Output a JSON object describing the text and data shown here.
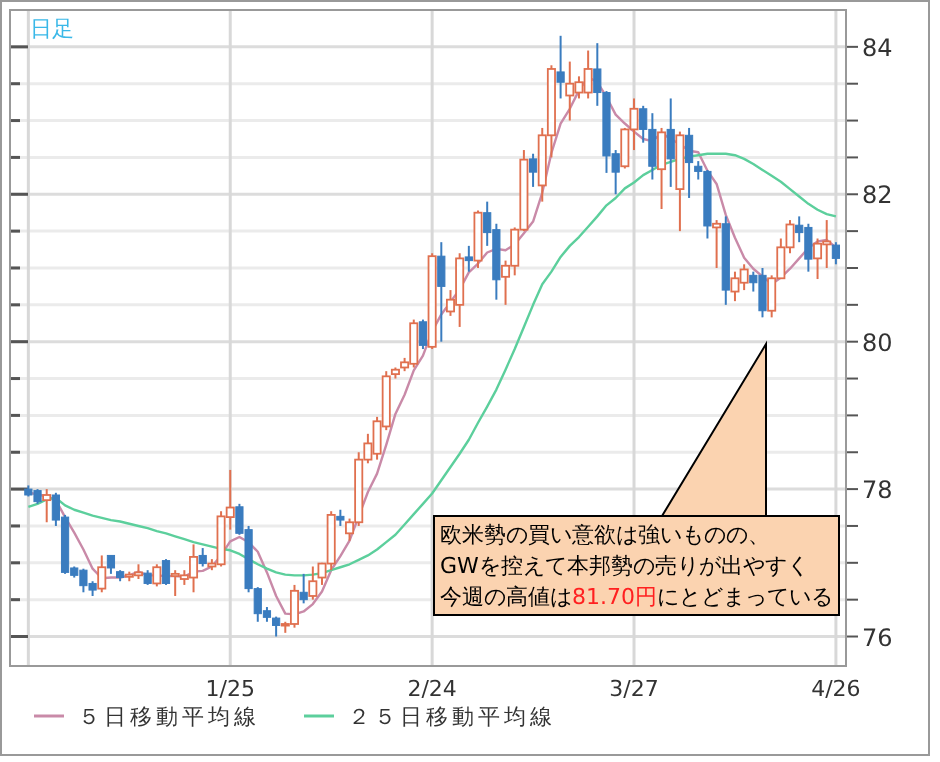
{
  "chart_data": {
    "type": "candlestick",
    "title": "日足",
    "categories": [
      null,
      null,
      null,
      null,
      null,
      null,
      null,
      null,
      null,
      null,
      null,
      null,
      null,
      null,
      null,
      null,
      null,
      null,
      null,
      null,
      null,
      null,
      "1/25",
      null,
      null,
      null,
      null,
      null,
      null,
      null,
      null,
      null,
      null,
      null,
      null,
      null,
      null,
      null,
      null,
      null,
      null,
      null,
      null,
      null,
      "2/24",
      null,
      null,
      null,
      null,
      null,
      null,
      null,
      null,
      null,
      null,
      null,
      null,
      null,
      null,
      null,
      null,
      null,
      null,
      null,
      null,
      null,
      "3/27",
      null,
      null,
      null,
      null,
      null,
      null,
      null,
      null,
      null,
      null,
      null,
      null,
      null,
      null,
      null,
      null,
      null,
      null,
      null,
      null,
      null,
      "4/26"
    ],
    "ohlc": [
      [
        78.0,
        78.05,
        77.9,
        77.92
      ],
      [
        77.98,
        78.0,
        77.8,
        77.83
      ],
      [
        77.85,
        78.0,
        77.55,
        77.92
      ],
      [
        77.92,
        77.95,
        77.5,
        77.58
      ],
      [
        77.62,
        77.65,
        76.85,
        76.87
      ],
      [
        76.93,
        76.95,
        76.8,
        76.83
      ],
      [
        76.9,
        76.92,
        76.6,
        76.69
      ],
      [
        76.72,
        76.75,
        76.55,
        76.63
      ],
      [
        76.65,
        77.1,
        76.6,
        76.94
      ],
      [
        77.1,
        77.1,
        76.85,
        76.93
      ],
      [
        76.88,
        76.9,
        76.75,
        76.8
      ],
      [
        76.81,
        76.88,
        76.75,
        76.84
      ],
      [
        76.83,
        76.98,
        76.78,
        76.87
      ],
      [
        76.86,
        76.9,
        76.7,
        76.72
      ],
      [
        76.72,
        76.98,
        76.68,
        76.94
      ],
      [
        77.03,
        77.05,
        76.7,
        76.72
      ],
      [
        76.82,
        76.9,
        76.55,
        76.85
      ],
      [
        76.78,
        76.9,
        76.7,
        76.83
      ],
      [
        76.8,
        77.25,
        76.6,
        77.08
      ],
      [
        77.1,
        77.2,
        76.95,
        76.99
      ],
      [
        76.95,
        77.05,
        76.9,
        76.99
      ],
      [
        76.98,
        77.7,
        76.95,
        77.63
      ],
      [
        77.62,
        78.26,
        77.45,
        77.75
      ],
      [
        77.76,
        77.8,
        77.38,
        77.4
      ],
      [
        77.45,
        77.5,
        76.6,
        76.65
      ],
      [
        76.65,
        76.67,
        76.2,
        76.31
      ],
      [
        76.35,
        76.4,
        76.2,
        76.26
      ],
      [
        76.25,
        76.27,
        76.0,
        76.15
      ],
      [
        76.15,
        76.2,
        76.05,
        76.17
      ],
      [
        76.17,
        76.7,
        76.12,
        76.62
      ],
      [
        76.6,
        76.85,
        76.45,
        76.5
      ],
      [
        76.55,
        76.95,
        76.5,
        76.75
      ],
      [
        76.8,
        77.0,
        76.7,
        76.99
      ],
      [
        76.99,
        77.7,
        76.9,
        77.65
      ],
      [
        77.63,
        77.72,
        77.5,
        77.58
      ],
      [
        77.4,
        77.6,
        77.3,
        77.55
      ],
      [
        77.55,
        78.5,
        77.5,
        78.4
      ],
      [
        78.4,
        78.75,
        78.35,
        78.62
      ],
      [
        78.48,
        78.98,
        78.4,
        78.92
      ],
      [
        78.85,
        79.6,
        78.8,
        79.53
      ],
      [
        79.56,
        79.65,
        79.5,
        79.62
      ],
      [
        79.65,
        79.78,
        79.6,
        79.72
      ],
      [
        79.7,
        80.3,
        79.65,
        80.25
      ],
      [
        80.27,
        80.3,
        79.9,
        79.95
      ],
      [
        79.93,
        81.2,
        79.9,
        81.16
      ],
      [
        81.16,
        81.35,
        80.0,
        80.75
      ],
      [
        80.41,
        80.7,
        80.35,
        80.57
      ],
      [
        80.5,
        81.2,
        80.2,
        81.13
      ],
      [
        81.15,
        81.3,
        80.95,
        81.1
      ],
      [
        81.1,
        81.78,
        81.0,
        81.75
      ],
      [
        81.75,
        81.9,
        81.3,
        81.48
      ],
      [
        81.52,
        81.6,
        80.57,
        80.84
      ],
      [
        80.88,
        81.1,
        80.5,
        81.03
      ],
      [
        81.03,
        81.55,
        80.9,
        81.52
      ],
      [
        81.52,
        82.6,
        81.5,
        82.47
      ],
      [
        82.48,
        82.55,
        82.1,
        82.3
      ],
      [
        82.12,
        82.9,
        81.9,
        82.8
      ],
      [
        82.8,
        83.75,
        82.5,
        83.7
      ],
      [
        83.66,
        84.15,
        83.3,
        83.52
      ],
      [
        83.34,
        83.8,
        83.0,
        83.5
      ],
      [
        83.38,
        83.6,
        83.3,
        83.52
      ],
      [
        83.38,
        83.95,
        83.3,
        83.7
      ],
      [
        83.7,
        84.05,
        83.2,
        83.38
      ],
      [
        83.38,
        83.4,
        82.29,
        82.52
      ],
      [
        82.55,
        82.6,
        82.0,
        82.3
      ],
      [
        82.38,
        82.9,
        82.35,
        82.88
      ],
      [
        82.88,
        83.3,
        82.6,
        83.16
      ],
      [
        83.16,
        83.2,
        82.7,
        82.88
      ],
      [
        82.88,
        83.1,
        82.2,
        82.38
      ],
      [
        82.34,
        82.9,
        81.8,
        82.84
      ],
      [
        82.88,
        83.3,
        82.1,
        82.48
      ],
      [
        82.07,
        82.85,
        81.5,
        82.8
      ],
      [
        82.8,
        82.9,
        81.95,
        82.43
      ],
      [
        82.38,
        82.45,
        82.2,
        82.31
      ],
      [
        82.31,
        82.33,
        81.4,
        81.57
      ],
      [
        81.55,
        81.65,
        81.0,
        81.6
      ],
      [
        81.6,
        81.7,
        80.5,
        80.7
      ],
      [
        80.68,
        80.95,
        80.55,
        80.86
      ],
      [
        80.8,
        81.05,
        80.7,
        80.98
      ],
      [
        80.9,
        80.95,
        80.68,
        80.8
      ],
      [
        80.9,
        81.0,
        80.33,
        80.42
      ],
      [
        80.42,
        80.9,
        80.33,
        80.86
      ],
      [
        80.86,
        81.4,
        80.85,
        81.28
      ],
      [
        81.28,
        81.65,
        81.2,
        81.59
      ],
      [
        81.58,
        81.7,
        81.35,
        81.48
      ],
      [
        81.55,
        81.6,
        80.95,
        81.12
      ],
      [
        81.13,
        81.4,
        80.85,
        81.33
      ],
      [
        81.32,
        81.65,
        81.0,
        81.36
      ],
      [
        81.31,
        81.35,
        81.05,
        81.13
      ]
    ],
    "series": [
      {
        "name": "５日移動平均線",
        "type": "line",
        "color": "#c98aa8",
        "values": [
          77.95,
          77.93,
          77.9,
          77.85,
          77.62,
          77.41,
          77.18,
          76.92,
          76.79,
          76.8,
          76.8,
          76.83,
          76.88,
          76.83,
          76.83,
          76.82,
          76.82,
          76.81,
          76.88,
          76.89,
          76.95,
          77.1,
          77.29,
          77.35,
          77.28,
          77.15,
          76.87,
          76.55,
          76.31,
          76.3,
          76.34,
          76.44,
          76.61,
          76.9,
          77.09,
          77.3,
          77.63,
          77.96,
          78.21,
          78.6,
          79.02,
          79.28,
          79.61,
          79.81,
          80.14,
          80.37,
          80.54,
          80.71,
          80.94,
          81.06,
          81.21,
          81.26,
          81.24,
          81.32,
          81.47,
          81.63,
          82.02,
          82.56,
          82.96,
          83.16,
          83.41,
          83.59,
          83.52,
          83.32,
          83.08,
          82.96,
          82.85,
          82.75,
          82.72,
          82.83,
          82.75,
          82.68,
          82.59,
          82.57,
          82.32,
          82.14,
          81.72,
          81.41,
          81.14,
          80.99,
          null,
          80.78,
          80.87,
          80.99,
          81.13,
          81.27,
          81.36,
          81.38,
          81.28
        ]
      },
      {
        "name": "２５日移動平均線",
        "type": "line",
        "color": "#5ccf9c",
        "values": [
          77.76,
          77.8,
          77.86,
          77.88,
          77.78,
          77.72,
          77.68,
          77.64,
          77.61,
          77.58,
          77.56,
          77.53,
          77.5,
          77.47,
          77.43,
          77.4,
          77.36,
          77.32,
          77.28,
          77.25,
          77.22,
          77.19,
          77.17,
          77.12,
          77.05,
          76.98,
          76.92,
          76.87,
          76.84,
          76.83,
          76.83,
          76.84,
          76.86,
          76.9,
          76.94,
          76.98,
          77.04,
          77.1,
          77.18,
          77.28,
          77.38,
          77.52,
          77.66,
          77.8,
          77.94,
          78.12,
          78.3,
          78.48,
          78.67,
          78.9,
          79.12,
          79.35,
          79.62,
          79.9,
          80.2,
          80.5,
          80.78,
          80.95,
          81.15,
          81.3,
          81.42,
          81.56,
          81.7,
          81.85,
          81.95,
          82.08,
          82.16,
          82.26,
          82.33,
          82.4,
          82.44,
          82.48,
          82.51,
          82.53,
          82.55,
          82.55,
          82.55,
          82.53,
          82.48,
          82.41,
          82.33,
          82.25,
          82.17,
          82.07,
          81.97,
          81.87,
          81.79,
          81.73,
          81.7
        ]
      }
    ],
    "ylim": [
      75.6,
      84.5
    ],
    "yticks": [
      76,
      {
        "value": 76.5,
        "label": null
      },
      {
        "value": 77,
        "label": null
      },
      {
        "value": 77.5,
        "label": null
      },
      78,
      {
        "value": 78.5,
        "label": null
      },
      {
        "value": 79,
        "label": null
      },
      {
        "value": 79.5,
        "label": null
      },
      80,
      {
        "value": 80.5,
        "label": null
      },
      {
        "value": 81,
        "label": null
      },
      {
        "value": 81.5,
        "label": null
      },
      82,
      {
        "value": 82.5,
        "label": null
      },
      {
        "value": 83,
        "label": null
      },
      {
        "value": 83.5,
        "label": null
      },
      84
    ],
    "grid": true,
    "legend": "bottom",
    "annotations": [
      "欧米勢の買い意欲は強いものの、",
      "GWを控えて本邦勢の売りが出やすく",
      "今週の高値は81.70円にとどまっている"
    ]
  }
}
